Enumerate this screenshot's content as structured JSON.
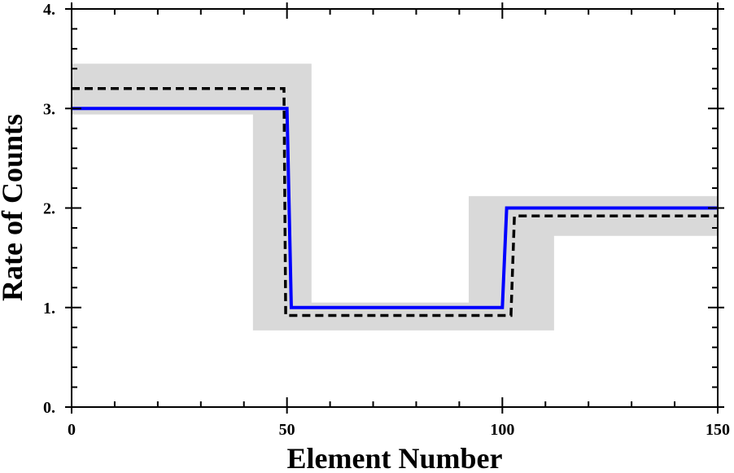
{
  "chart_data": {
    "type": "line",
    "xlabel": "Element Number",
    "ylabel": "Rate of Counts",
    "xlim": [
      0,
      150
    ],
    "ylim": [
      0,
      4
    ],
    "xticks": [
      0,
      50,
      100,
      150
    ],
    "yticks": [
      {
        "value": 0,
        "label": "0."
      },
      {
        "value": 1,
        "label": "1."
      },
      {
        "value": 2,
        "label": "2."
      },
      {
        "value": 3,
        "label": "3."
      },
      {
        "value": 4,
        "label": "4."
      }
    ],
    "x_minor_ticks": [
      10,
      20,
      30,
      40,
      60,
      70,
      80,
      90,
      110,
      120,
      130,
      140
    ],
    "y_minor_ticks": [
      0.2,
      0.4,
      0.6,
      0.8,
      1.2,
      1.4,
      1.6,
      1.8,
      2.2,
      2.4,
      2.6,
      2.8,
      3.2,
      3.4,
      3.6,
      3.8
    ],
    "band": {
      "color": "#d9d9d9",
      "upper": {
        "x": [
          0,
          55.7,
          55.7,
          92.2,
          92.2,
          150
        ],
        "values": [
          3.45,
          3.45,
          1.05,
          1.05,
          2.12,
          2.12
        ]
      },
      "lower": {
        "x": [
          0,
          42.1,
          42.1,
          112,
          112,
          150
        ],
        "values": [
          2.94,
          2.94,
          0.77,
          0.77,
          1.72,
          1.72
        ]
      }
    },
    "series": [
      {
        "color": "#000000",
        "dashed": true,
        "x": [
          0,
          49.3,
          49.7,
          102,
          102.8,
          150
        ],
        "values": [
          3.2,
          3.2,
          0.92,
          0.92,
          1.92,
          1.92
        ]
      },
      {
        "color": "#0000ff",
        "dashed": false,
        "x": [
          0,
          50,
          51,
          100,
          101,
          150
        ],
        "values": [
          3,
          3,
          1,
          1,
          2,
          2
        ]
      }
    ]
  }
}
